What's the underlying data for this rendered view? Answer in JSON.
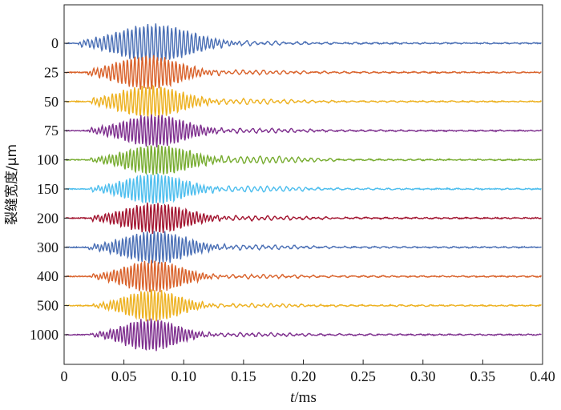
{
  "chart_data": {
    "type": "line",
    "title": "",
    "xlabel_italic": "t",
    "xlabel_rest": "/ms",
    "ylabel": "裂缝宽度/μm",
    "xlim": [
      0,
      0.4
    ],
    "x_ticks": [
      "0",
      "0.05",
      "0.10",
      "0.15",
      "0.20",
      "0.25",
      "0.30",
      "0.35",
      "0.40"
    ],
    "x_tick_values": [
      0,
      0.05,
      0.1,
      0.15,
      0.2,
      0.25,
      0.3,
      0.35,
      0.4
    ],
    "grid": false,
    "legend": "none",
    "y_categories": [
      "0",
      "25",
      "50",
      "75",
      "100",
      "150",
      "200",
      "300",
      "400",
      "500",
      "1000"
    ],
    "series": [
      {
        "category": "0",
        "color": "#4A6FB5",
        "packet_center": 0.075,
        "packet_width": 0.042,
        "amplitude": 1.0,
        "freq": 30,
        "onset": 0.012,
        "tail": 0.008
      },
      {
        "category": "25",
        "color": "#D9622B",
        "packet_center": 0.07,
        "packet_width": 0.035,
        "amplitude": 0.9,
        "freq": 32,
        "onset": 0.02,
        "tail": 0.01
      },
      {
        "category": "50",
        "color": "#EDB120",
        "packet_center": 0.072,
        "packet_width": 0.035,
        "amplitude": 0.85,
        "freq": 32,
        "onset": 0.022,
        "tail": 0.012
      },
      {
        "category": "75",
        "color": "#7E2F8E",
        "packet_center": 0.075,
        "packet_width": 0.035,
        "amplitude": 0.85,
        "freq": 34,
        "onset": 0.02,
        "tail": 0.01
      },
      {
        "category": "100",
        "color": "#77AC30",
        "packet_center": 0.078,
        "packet_width": 0.036,
        "amplitude": 0.8,
        "freq": 34,
        "onset": 0.022,
        "tail": 0.018
      },
      {
        "category": "150",
        "color": "#4DBEEE",
        "packet_center": 0.075,
        "packet_width": 0.034,
        "amplitude": 0.8,
        "freq": 34,
        "onset": 0.022,
        "tail": 0.014
      },
      {
        "category": "200",
        "color": "#A2142F",
        "packet_center": 0.076,
        "packet_width": 0.035,
        "amplitude": 0.8,
        "freq": 34,
        "onset": 0.022,
        "tail": 0.01
      },
      {
        "category": "300",
        "color": "#4A6FB5",
        "packet_center": 0.076,
        "packet_width": 0.035,
        "amplitude": 0.85,
        "freq": 34,
        "onset": 0.02,
        "tail": 0.01
      },
      {
        "category": "400",
        "color": "#D9622B",
        "packet_center": 0.074,
        "packet_width": 0.032,
        "amplitude": 0.85,
        "freq": 35,
        "onset": 0.022,
        "tail": 0.008
      },
      {
        "category": "500",
        "color": "#EDB120",
        "packet_center": 0.074,
        "packet_width": 0.03,
        "amplitude": 0.85,
        "freq": 35,
        "onset": 0.024,
        "tail": 0.008
      },
      {
        "category": "1000",
        "color": "#7E2F8E",
        "packet_center": 0.072,
        "packet_width": 0.03,
        "amplitude": 0.85,
        "freq": 35,
        "onset": 0.022,
        "tail": 0.008
      }
    ]
  }
}
